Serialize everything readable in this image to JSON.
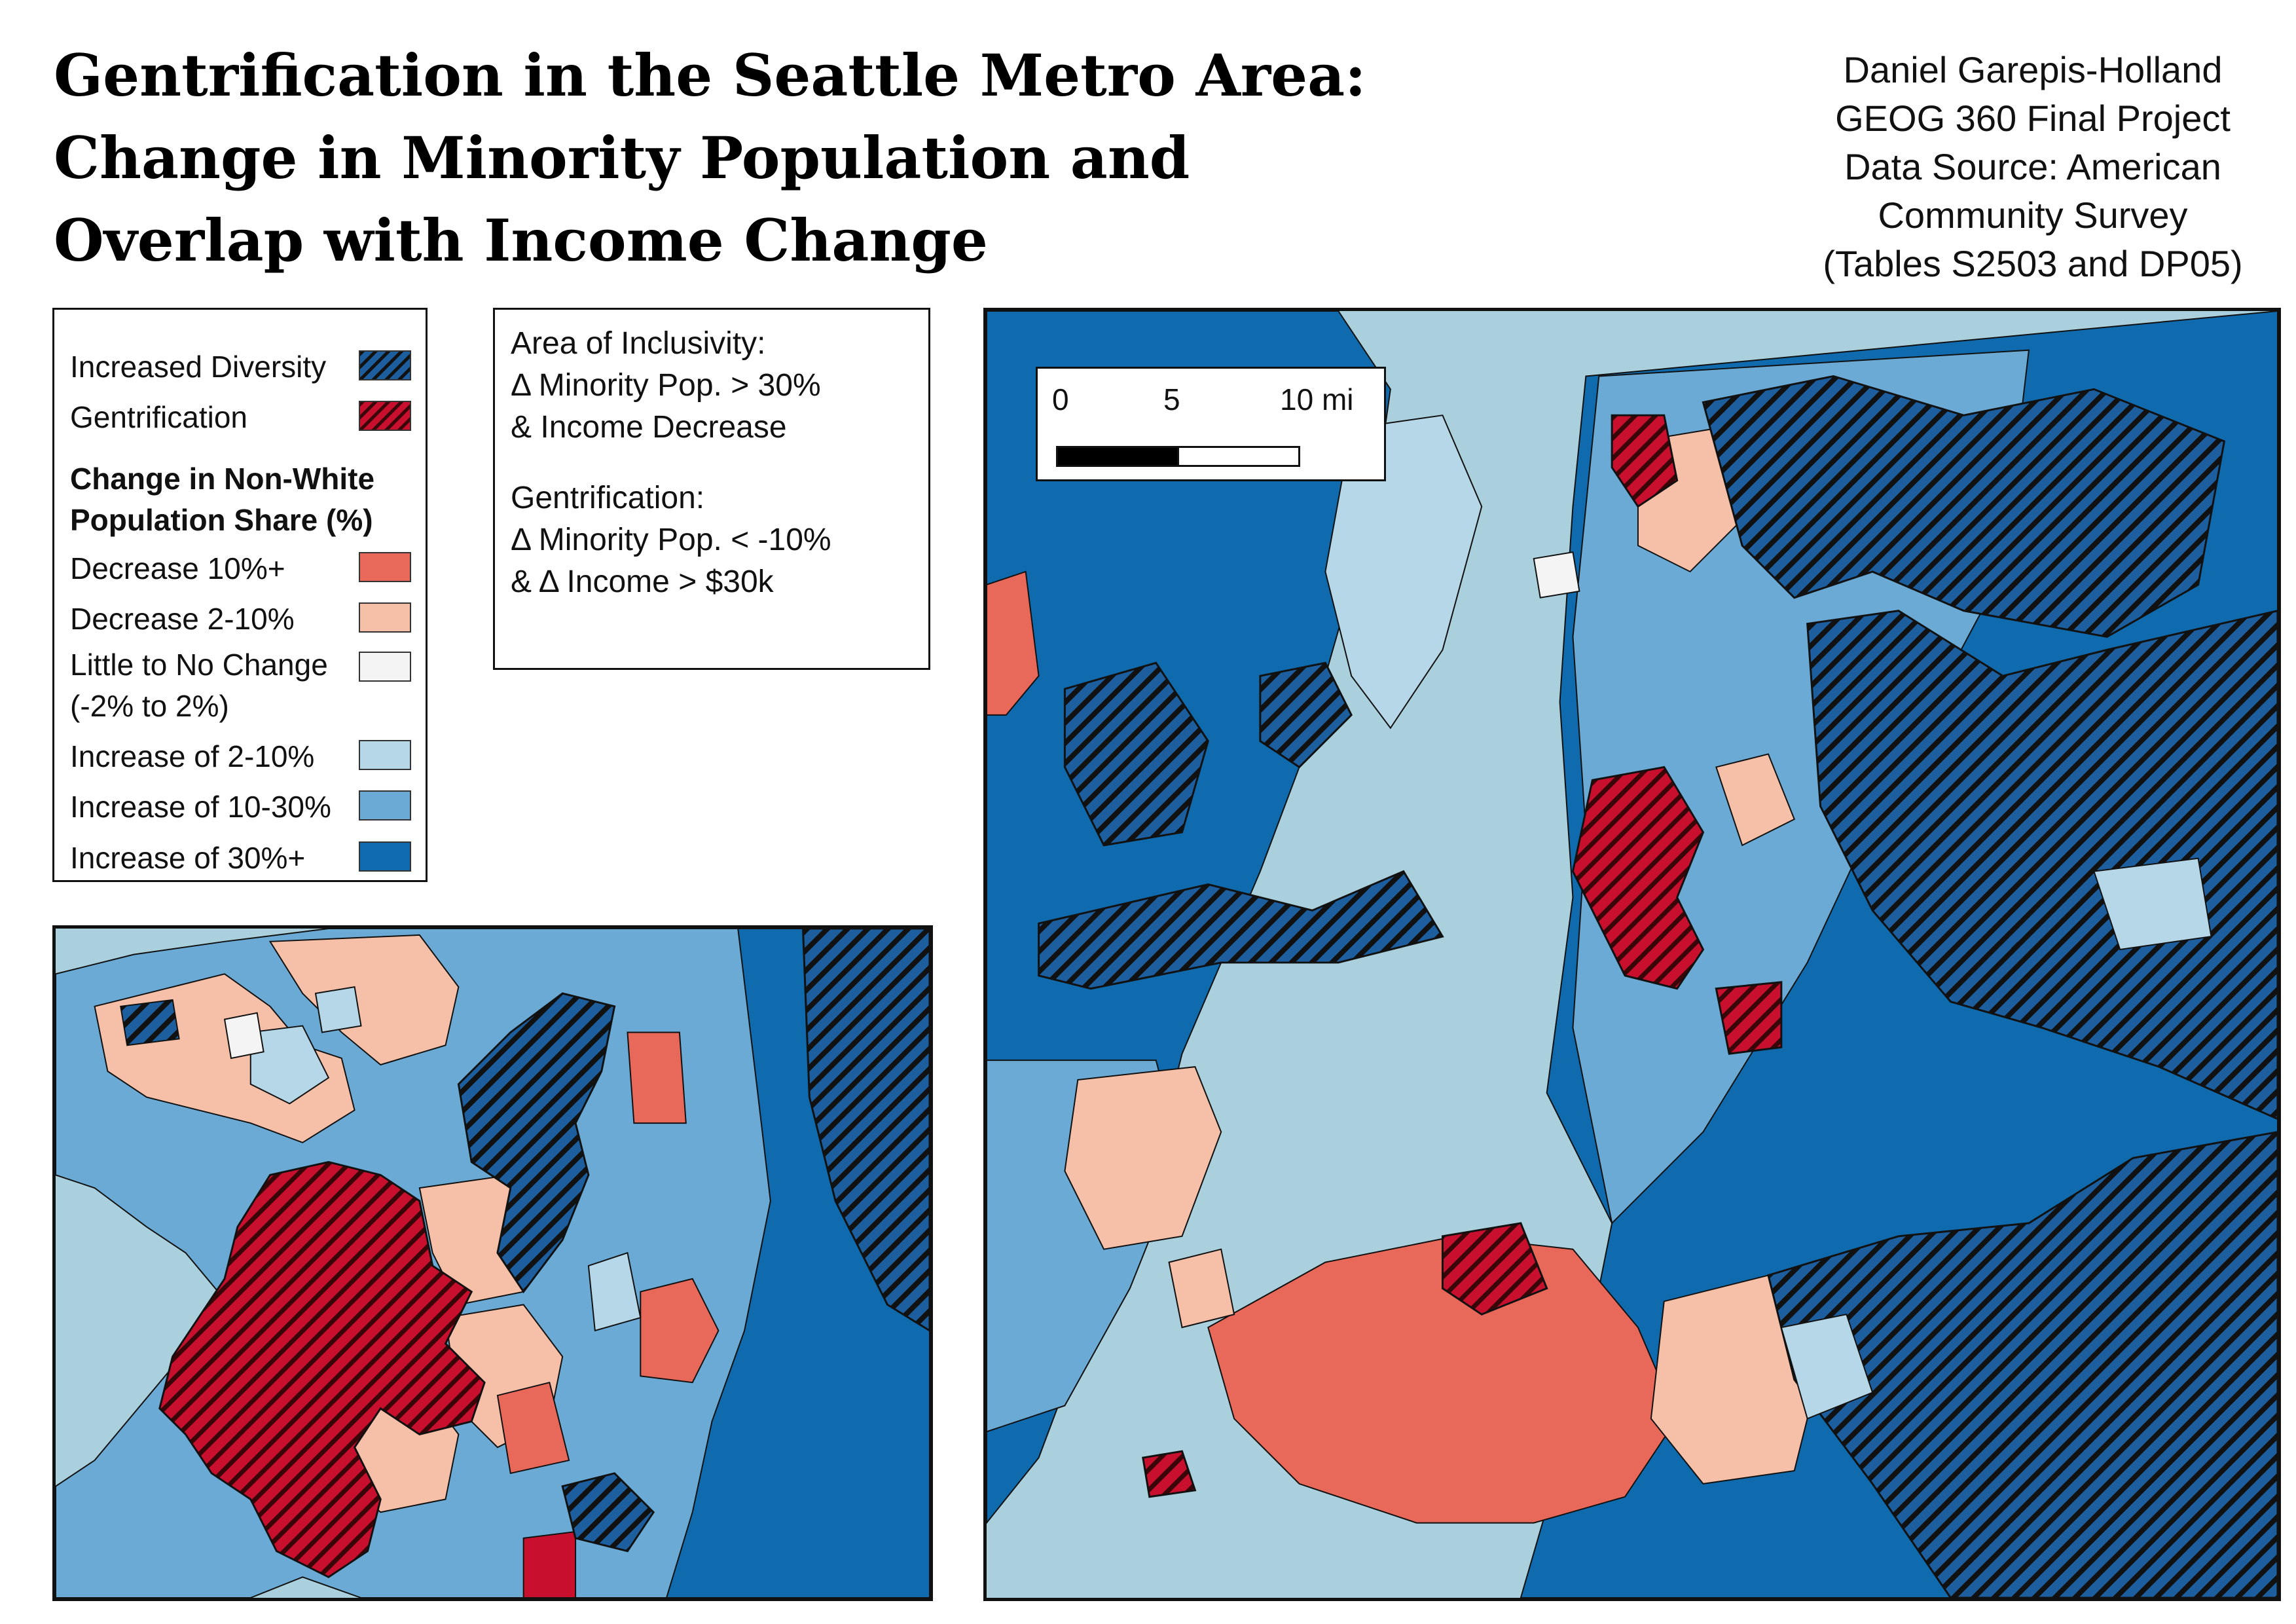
{
  "title": {
    "line1": "Gentrification in the Seattle Metro Area:",
    "line2": "Change in Minority Population and",
    "line3": "Overlap with Income Change"
  },
  "credits": {
    "line1": "Daniel Garepis-Holland",
    "line2": "GEOG 360 Final Project",
    "line3": "Data Source: American",
    "line4": "Community Survey",
    "line5": "(Tables S2503 and DP05)"
  },
  "legend": {
    "increased_diversity": "Increased Diversity",
    "gentrification": "Gentrification",
    "heading_line1": "Change in Non-White",
    "heading_line2": "Population Share (%)",
    "classes": {
      "dec10": "Decrease 10%+",
      "dec2": "Decrease  2-10%",
      "little_line1": "Little to No Change",
      "little_line2": "(-2% to 2%)",
      "inc2": "Increase of 2-10%",
      "inc10": "Increase of 10-30%",
      "inc30": "Increase of 30%+"
    }
  },
  "definitions": {
    "inclusivity_line1": "Area of Inclusivity:",
    "inclusivity_line2": "Δ Minority Pop. > 30%",
    "inclusivity_line3": "& Income Decrease",
    "gentrification_line1": "Gentrification:",
    "gentrification_line2": "Δ Minority Pop. < -10%",
    "gentrification_line3": "& Δ Income > $30k"
  },
  "scalebar": {
    "label_0": "0",
    "label_5": "5",
    "label_10": "10 mi"
  },
  "colors": {
    "decrease_10_plus": "#e8685a",
    "decrease_2_10": "#f5bfa8",
    "little_change": "#f4f4f4",
    "increase_2_10": "#b6d7e7",
    "increase_10_30": "#6aaad4",
    "increase_30_plus": "#0f6aae",
    "gentrification_fill": "#c8102e",
    "increased_diversity_fill": "#1b63a5",
    "water": "#aad0dd"
  }
}
